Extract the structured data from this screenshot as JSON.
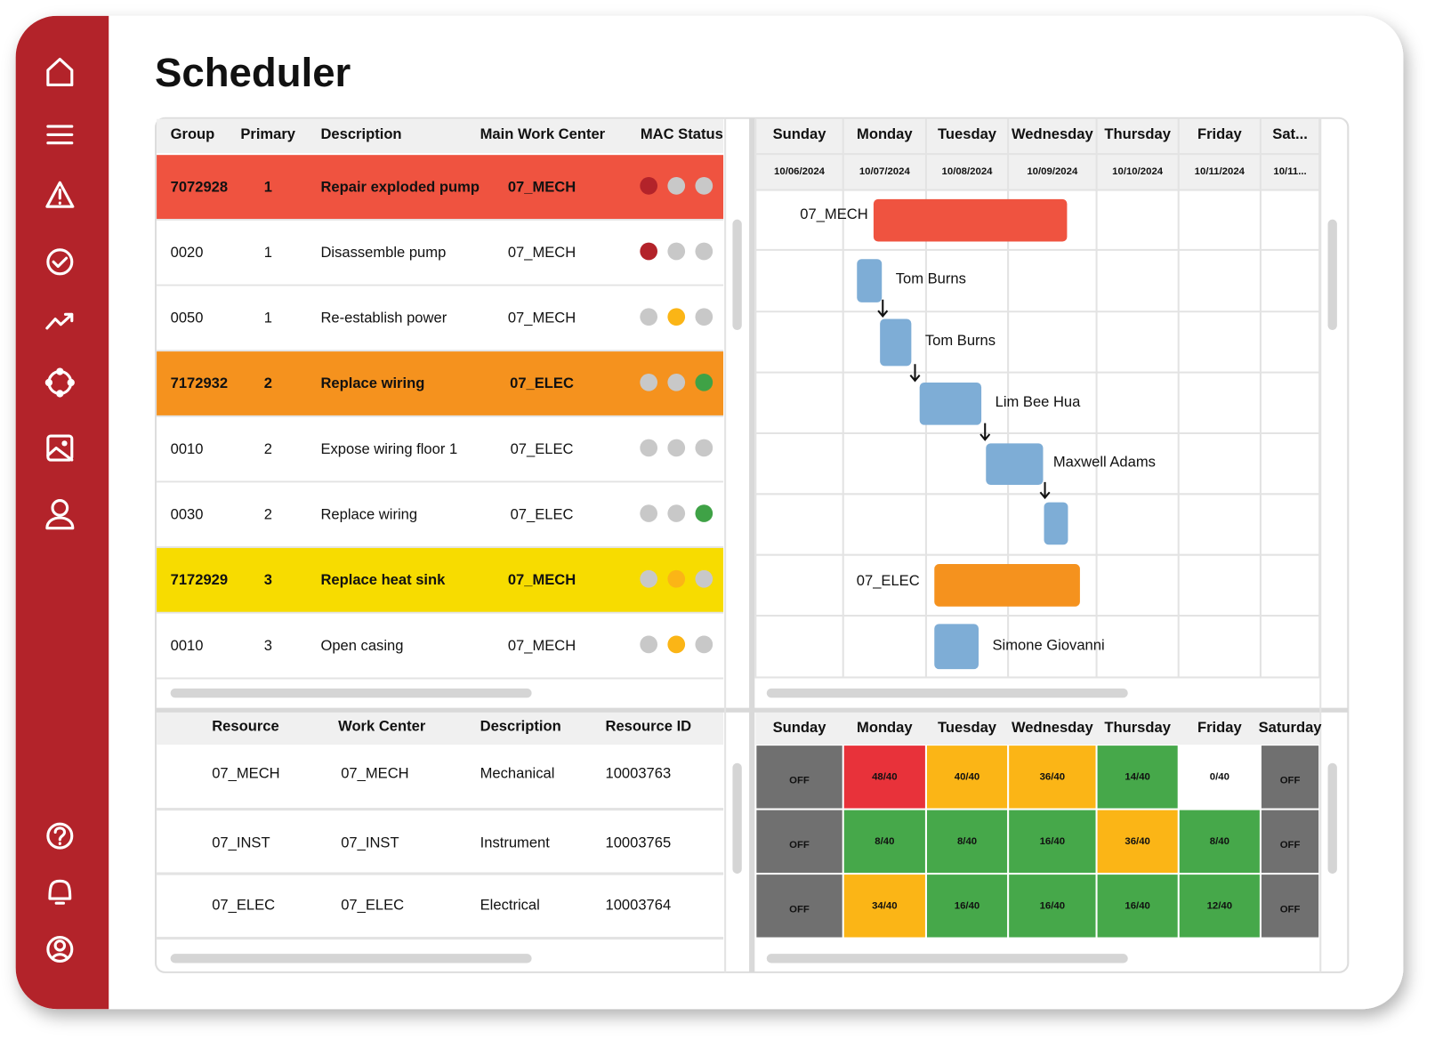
{
  "title": "Scheduler",
  "tasks": {
    "columns": [
      "Group",
      "Primary",
      "Description",
      "Main Work Center",
      "MAC Status"
    ],
    "rows": [
      {
        "cells": [
          "7072928",
          "1",
          "Repair exploded pump",
          "07_MECH"
        ],
        "status": [
          "#b3232a",
          "#c8c8c8",
          "#c8c8c8"
        ],
        "highlight": "#ef5340"
      },
      {
        "cells": [
          "0020",
          "1",
          "Disassemble pump",
          "07_MECH"
        ],
        "status": [
          "#b3232a",
          "#c8c8c8",
          "#c8c8c8"
        ],
        "highlight": "#ffffff"
      },
      {
        "cells": [
          "0050",
          "1",
          "Re-establish power",
          "07_MECH"
        ],
        "status": [
          "#c8c8c8",
          "#fbb516",
          "#c8c8c8"
        ],
        "highlight": "#ffffff"
      },
      {
        "cells": [
          "7172932",
          "2",
          "Replace wiring",
          "07_ELEC"
        ],
        "status": [
          "#c8c8c8",
          "#c8c8c8",
          "#3fa246"
        ],
        "highlight": "#f5921e"
      },
      {
        "cells": [
          "0010",
          "2",
          "Expose wiring floor 1",
          "07_ELEC"
        ],
        "status": [
          "#c8c8c8",
          "#c8c8c8",
          "#c8c8c8"
        ],
        "highlight": "#ffffff"
      },
      {
        "cells": [
          "0030",
          "2",
          "Replace wiring",
          "07_ELEC"
        ],
        "status": [
          "#c8c8c8",
          "#c8c8c8",
          "#3fa246"
        ],
        "highlight": "#ffffff"
      },
      {
        "cells": [
          "7172929",
          "3",
          "Replace heat sink",
          "07_MECH"
        ],
        "status": [
          "#c8c8c8",
          "#fbb516",
          "#c8c8c8"
        ],
        "highlight": "#f7dc00"
      },
      {
        "cells": [
          "0010",
          "3",
          "Open casing",
          "07_MECH"
        ],
        "status": [
          "#c8c8c8",
          "#fbb516",
          "#c8c8c8"
        ],
        "highlight": "#ffffff"
      }
    ]
  },
  "gantt": {
    "days": [
      "Sunday",
      "Monday",
      "Tuesday",
      "Wednesday",
      "Thursday",
      "Friday",
      "Sat..."
    ],
    "dates": [
      "10/06/2024",
      "10/07/2024",
      "10/08/2024",
      "10/09/2024",
      "10/10/2024",
      "10/11/2024",
      "10/11..."
    ],
    "bars": [
      {
        "label": "07_MECH",
        "color": "#ef5340"
      },
      {
        "label": "Tom Burns",
        "color": "#7eadd6"
      },
      {
        "label": "Tom Burns",
        "color": "#7eadd6"
      },
      {
        "label": "Lim Bee Hua",
        "color": "#7eadd6"
      },
      {
        "label": "Maxwell Adams",
        "color": "#7eadd6"
      },
      {
        "color": "#7eadd6"
      },
      {
        "label": "07_ELEC",
        "color": "#f5921e"
      },
      {
        "label": "Simone Giovanni",
        "color": "#7eadd6"
      }
    ]
  },
  "resources": {
    "columns": [
      "Resource",
      "Work Center",
      "Description",
      "Resource ID"
    ],
    "rows": [
      [
        "07_MECH",
        "07_MECH",
        "Mechanical",
        "10003763"
      ],
      [
        "07_INST",
        "07_INST",
        "Instrument",
        "10003765"
      ],
      [
        "07_ELEC",
        "07_ELEC",
        "Electrical",
        "10003764"
      ]
    ]
  },
  "capacity": {
    "days": [
      "Sunday",
      "Monday",
      "Tuesday",
      "Wednesday",
      "Thursday",
      "Friday",
      "Saturday"
    ],
    "rows": [
      [
        {
          "label": "OFF",
          "color": "#707070"
        },
        {
          "label": "48/40",
          "color": "#e8323a"
        },
        {
          "label": "40/40",
          "color": "#fbb516"
        },
        {
          "label": "36/40",
          "color": "#fbb516"
        },
        {
          "label": "14/40",
          "color": "#46a84a"
        },
        {
          "label": "0/40",
          "color": "#ffffff"
        },
        {
          "label": "OFF",
          "color": "#707070"
        }
      ],
      [
        {
          "label": "OFF",
          "color": "#707070"
        },
        {
          "label": "8/40",
          "color": "#46a84a"
        },
        {
          "label": "8/40",
          "color": "#46a84a"
        },
        {
          "label": "16/40",
          "color": "#46a84a"
        },
        {
          "label": "36/40",
          "color": "#fbb516"
        },
        {
          "label": "8/40",
          "color": "#46a84a"
        },
        {
          "label": "OFF",
          "color": "#707070"
        }
      ],
      [
        {
          "label": "OFF",
          "color": "#707070"
        },
        {
          "label": "34/40",
          "color": "#fbb516"
        },
        {
          "label": "16/40",
          "color": "#46a84a"
        },
        {
          "label": "16/40",
          "color": "#46a84a"
        },
        {
          "label": "16/40",
          "color": "#46a84a"
        },
        {
          "label": "12/40",
          "color": "#46a84a"
        },
        {
          "label": "OFF",
          "color": "#707070"
        }
      ]
    ]
  }
}
